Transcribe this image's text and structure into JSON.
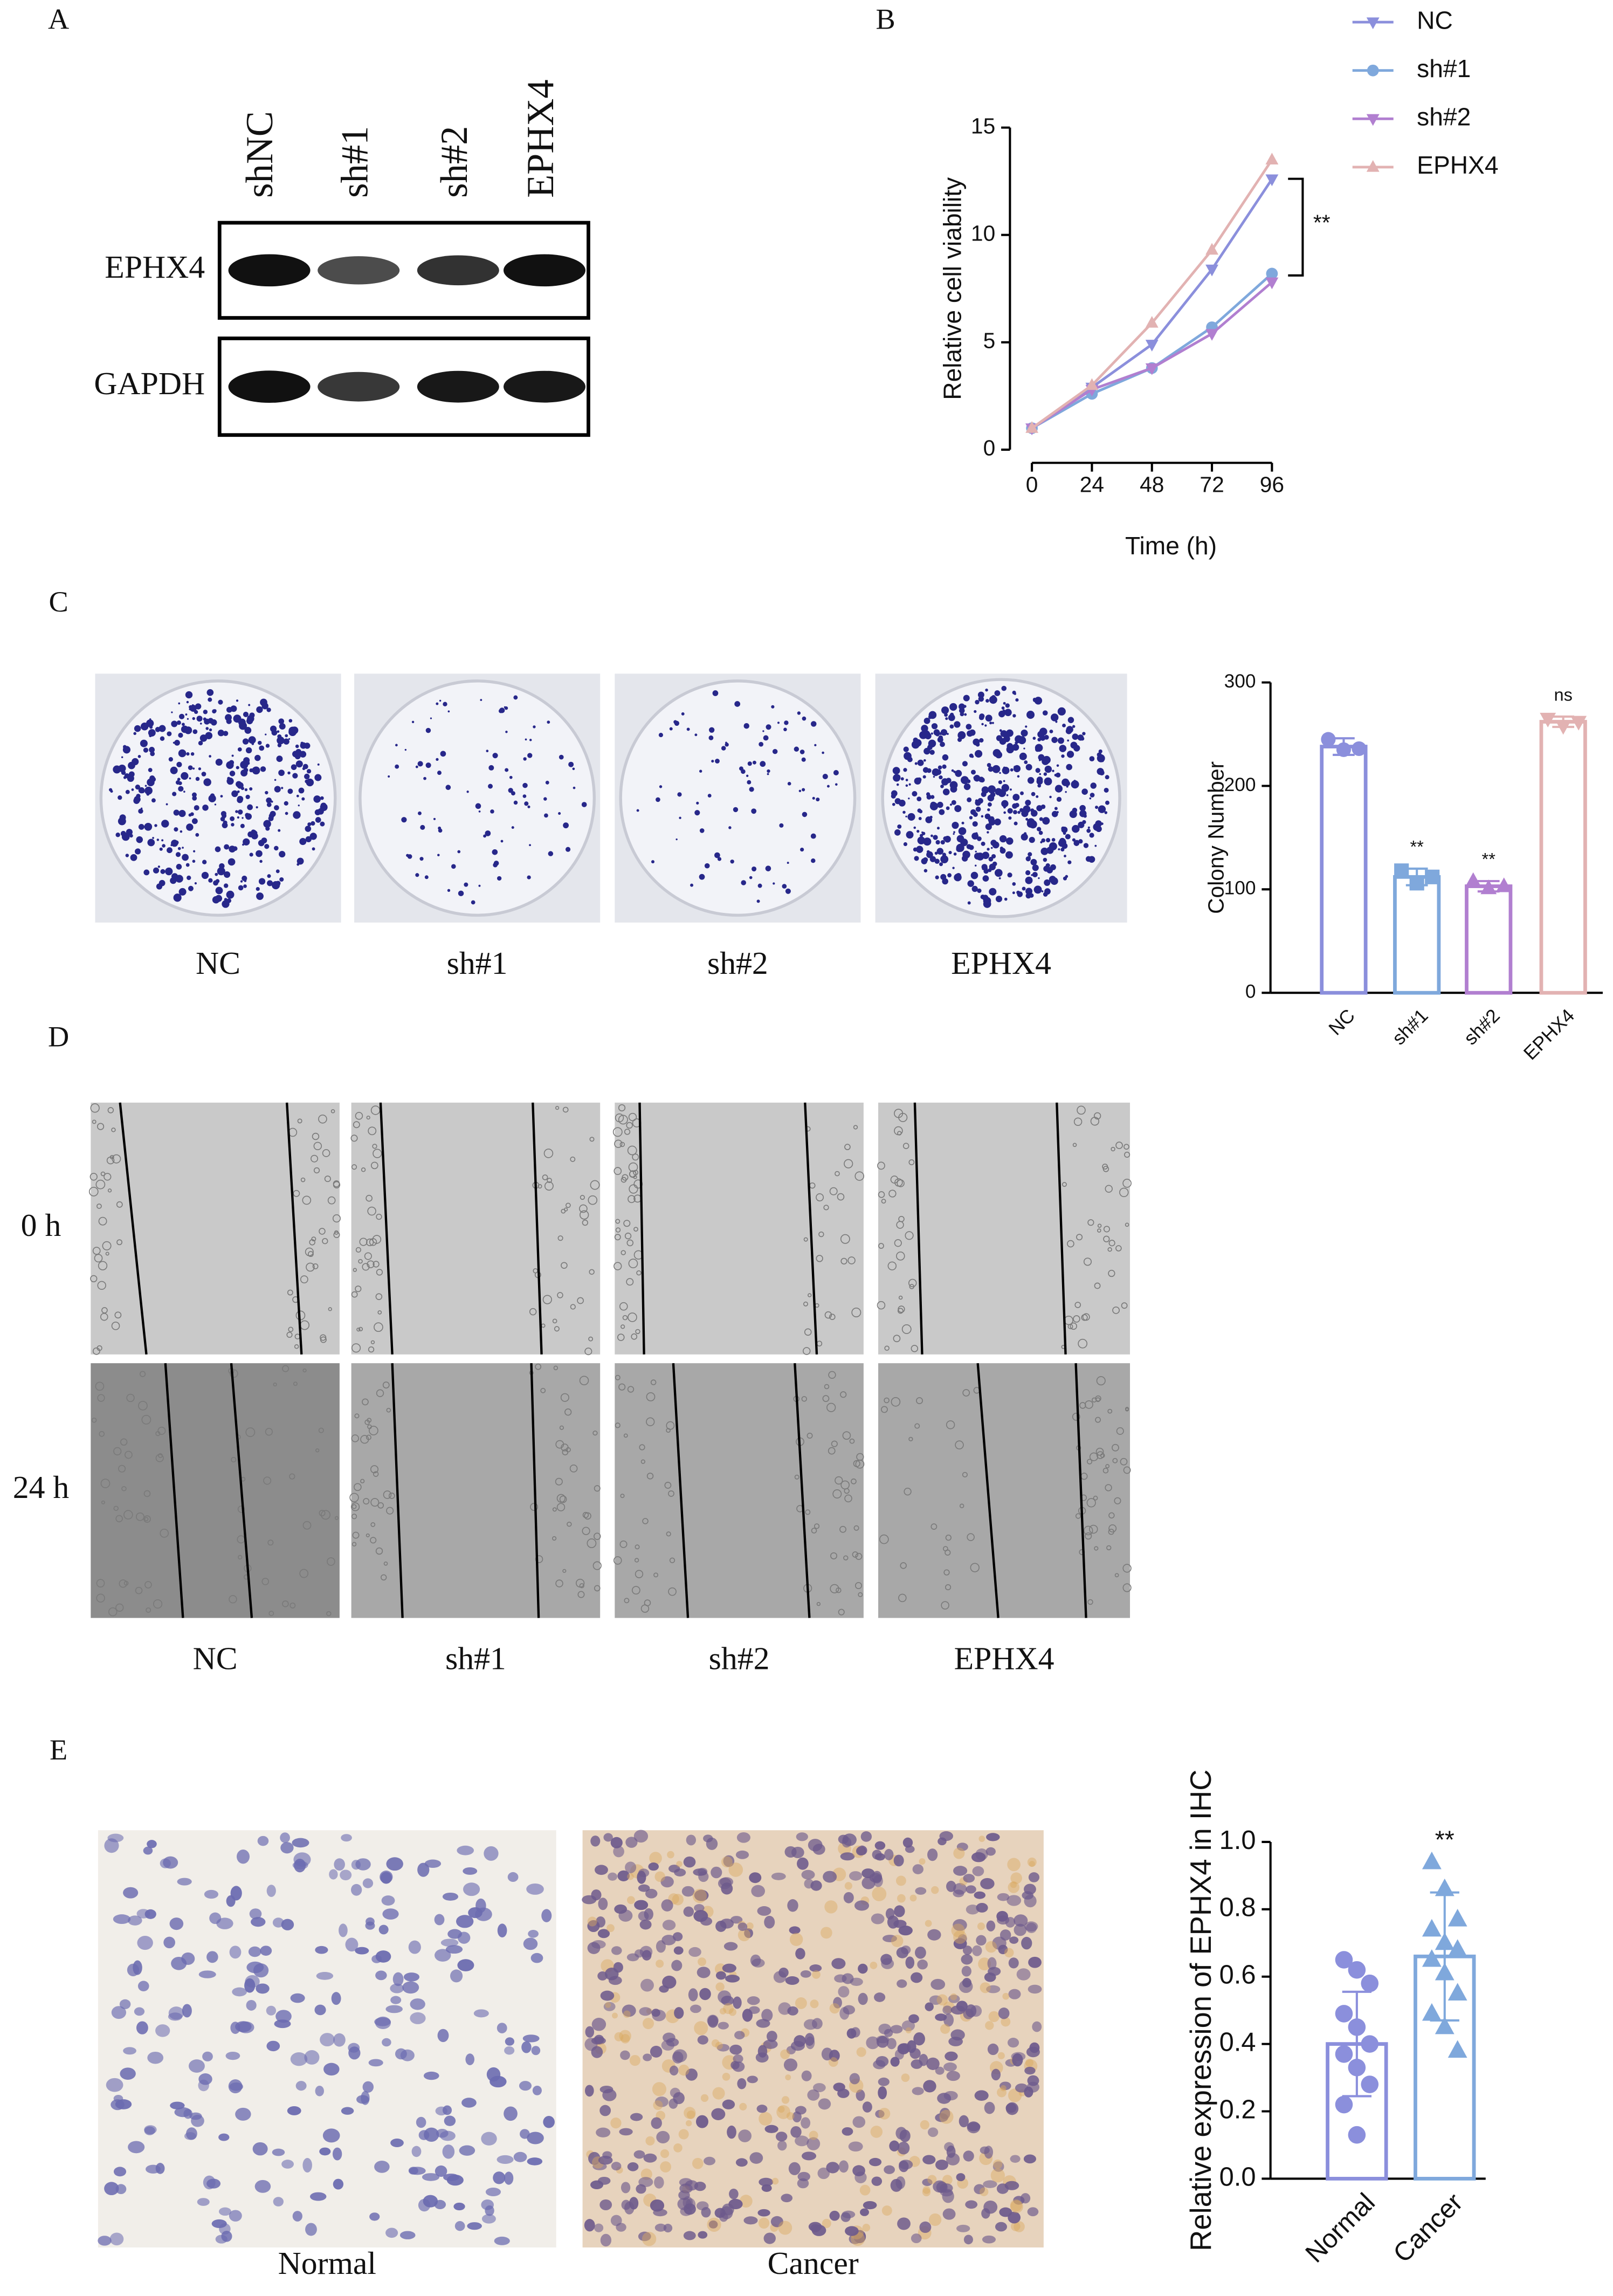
{
  "figure": {
    "panel_labels": [
      "A",
      "B",
      "C",
      "D",
      "E"
    ],
    "blot": {
      "columns": [
        "shNC",
        "sh#1",
        "sh#2",
        "EPHX4"
      ],
      "rows": [
        "EPHX4",
        "GAPDH"
      ]
    },
    "colony_images": {
      "labels": [
        "NC",
        "sh#1",
        "sh#2",
        "EPHX4"
      ]
    },
    "wound_images": {
      "rows": [
        "0 h",
        "24 h"
      ],
      "columns": [
        "NC",
        "sh#1",
        "sh#2",
        "EPHX4"
      ]
    },
    "ihc_images": {
      "labels": [
        "Normal",
        "Cancer"
      ]
    }
  },
  "chart_data": [
    {
      "type": "line",
      "x": [
        0,
        24,
        48,
        72,
        96
      ],
      "xlim": [
        0,
        96
      ],
      "xticks": [
        0,
        24,
        48,
        72,
        96
      ],
      "ylim": [
        0,
        15
      ],
      "yticks": [
        0,
        5,
        10,
        15
      ],
      "xlabel": "Time (h)",
      "ylabel": "Relative cell viability",
      "annotation": "**",
      "legend": "top-right",
      "series": [
        {
          "name": "NC",
          "color": "#8b8fdc",
          "marker": "triangle-down",
          "values": [
            1,
            2.9,
            4.9,
            8.4,
            12.6
          ]
        },
        {
          "name": "sh#1",
          "color": "#7fa8dc",
          "marker": "circle",
          "values": [
            1,
            2.6,
            3.8,
            5.7,
            8.2
          ]
        },
        {
          "name": "sh#2",
          "color": "#b17fd0",
          "marker": "triangle-down",
          "values": [
            1,
            2.8,
            3.8,
            5.4,
            7.8
          ]
        },
        {
          "name": "EPHX4",
          "color": "#e2b2b2",
          "marker": "triangle-up",
          "values": [
            1,
            3.0,
            5.9,
            9.3,
            13.5
          ]
        }
      ]
    },
    {
      "type": "bar",
      "categories": [
        "NC",
        "sh#1",
        "sh#2",
        "EPHX4"
      ],
      "values": [
        238,
        112,
        103,
        262
      ],
      "errors": [
        8,
        8,
        5,
        5
      ],
      "colors": [
        "#8b8fdc",
        "#7fa8dc",
        "#b17fd0",
        "#e2b2b2"
      ],
      "markers": [
        "circle",
        "square",
        "triangle-up",
        "triangle-down"
      ],
      "points": [
        [
          245,
          235,
          236
        ],
        [
          118,
          106,
          112
        ],
        [
          108,
          101,
          103
        ],
        [
          265,
          258,
          262
        ]
      ],
      "ylim": [
        0,
        300
      ],
      "yticks": [
        0,
        100,
        200,
        300
      ],
      "ylabel": "Colony Number",
      "annotations": [
        {
          "category": "sh#1",
          "text": "**"
        },
        {
          "category": "sh#2",
          "text": "**"
        },
        {
          "category": "EPHX4",
          "text": "ns"
        }
      ]
    },
    {
      "type": "bar",
      "categories": [
        "Normal",
        "Cancer"
      ],
      "values": [
        0.4,
        0.66
      ],
      "errors": [
        0.155,
        0.19
      ],
      "colors": [
        "#8b8fdc",
        "#7fa8dc"
      ],
      "markers": [
        "circle",
        "triangle-up"
      ],
      "points": [
        [
          0.65,
          0.62,
          0.58,
          0.49,
          0.45,
          0.4,
          0.37,
          0.33,
          0.28,
          0.22,
          0.13
        ],
        [
          0.94,
          0.86,
          0.77,
          0.74,
          0.7,
          0.68,
          0.65,
          0.61,
          0.55,
          0.49,
          0.45,
          0.38
        ]
      ],
      "ylim": [
        0,
        1
      ],
      "yticks": [
        {
          "value": 0,
          "label": "0.0"
        },
        {
          "value": 0.2,
          "label": "0.2"
        },
        {
          "value": 0.4,
          "label": "0.4"
        },
        {
          "value": 0.6,
          "label": "0.6"
        },
        {
          "value": 0.8,
          "label": "0.8"
        },
        {
          "value": 1,
          "label": "1.0"
        }
      ],
      "ylabel": "Relative expression of EPHX4 in IHC",
      "annotations": [
        {
          "category": "Cancer",
          "text": "**"
        }
      ]
    }
  ]
}
